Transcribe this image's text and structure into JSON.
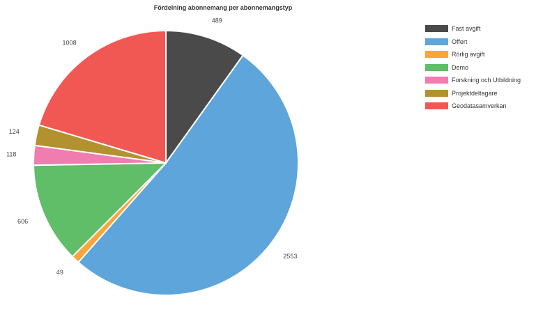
{
  "chart_data": {
    "type": "pie",
    "title": "Fördelning abonnemang per abonnemangstyp",
    "legend_position": "right",
    "series": [
      {
        "name": "Fast avgift",
        "value": 489,
        "color": "#4a4a4a"
      },
      {
        "name": "Offert",
        "value": 2553,
        "color": "#5da5da"
      },
      {
        "name": "Rörlig avgift",
        "value": 49,
        "color": "#faa43a"
      },
      {
        "name": "Demo",
        "value": 606,
        "color": "#60bd68"
      },
      {
        "name": "Forskning och Utbildning",
        "value": 118,
        "color": "#f17cb0"
      },
      {
        "name": "Projektdeltagare",
        "value": 124,
        "color": "#b2912f"
      },
      {
        "name": "Geodatasamverkan",
        "value": 1008,
        "color": "#f15854"
      }
    ]
  }
}
